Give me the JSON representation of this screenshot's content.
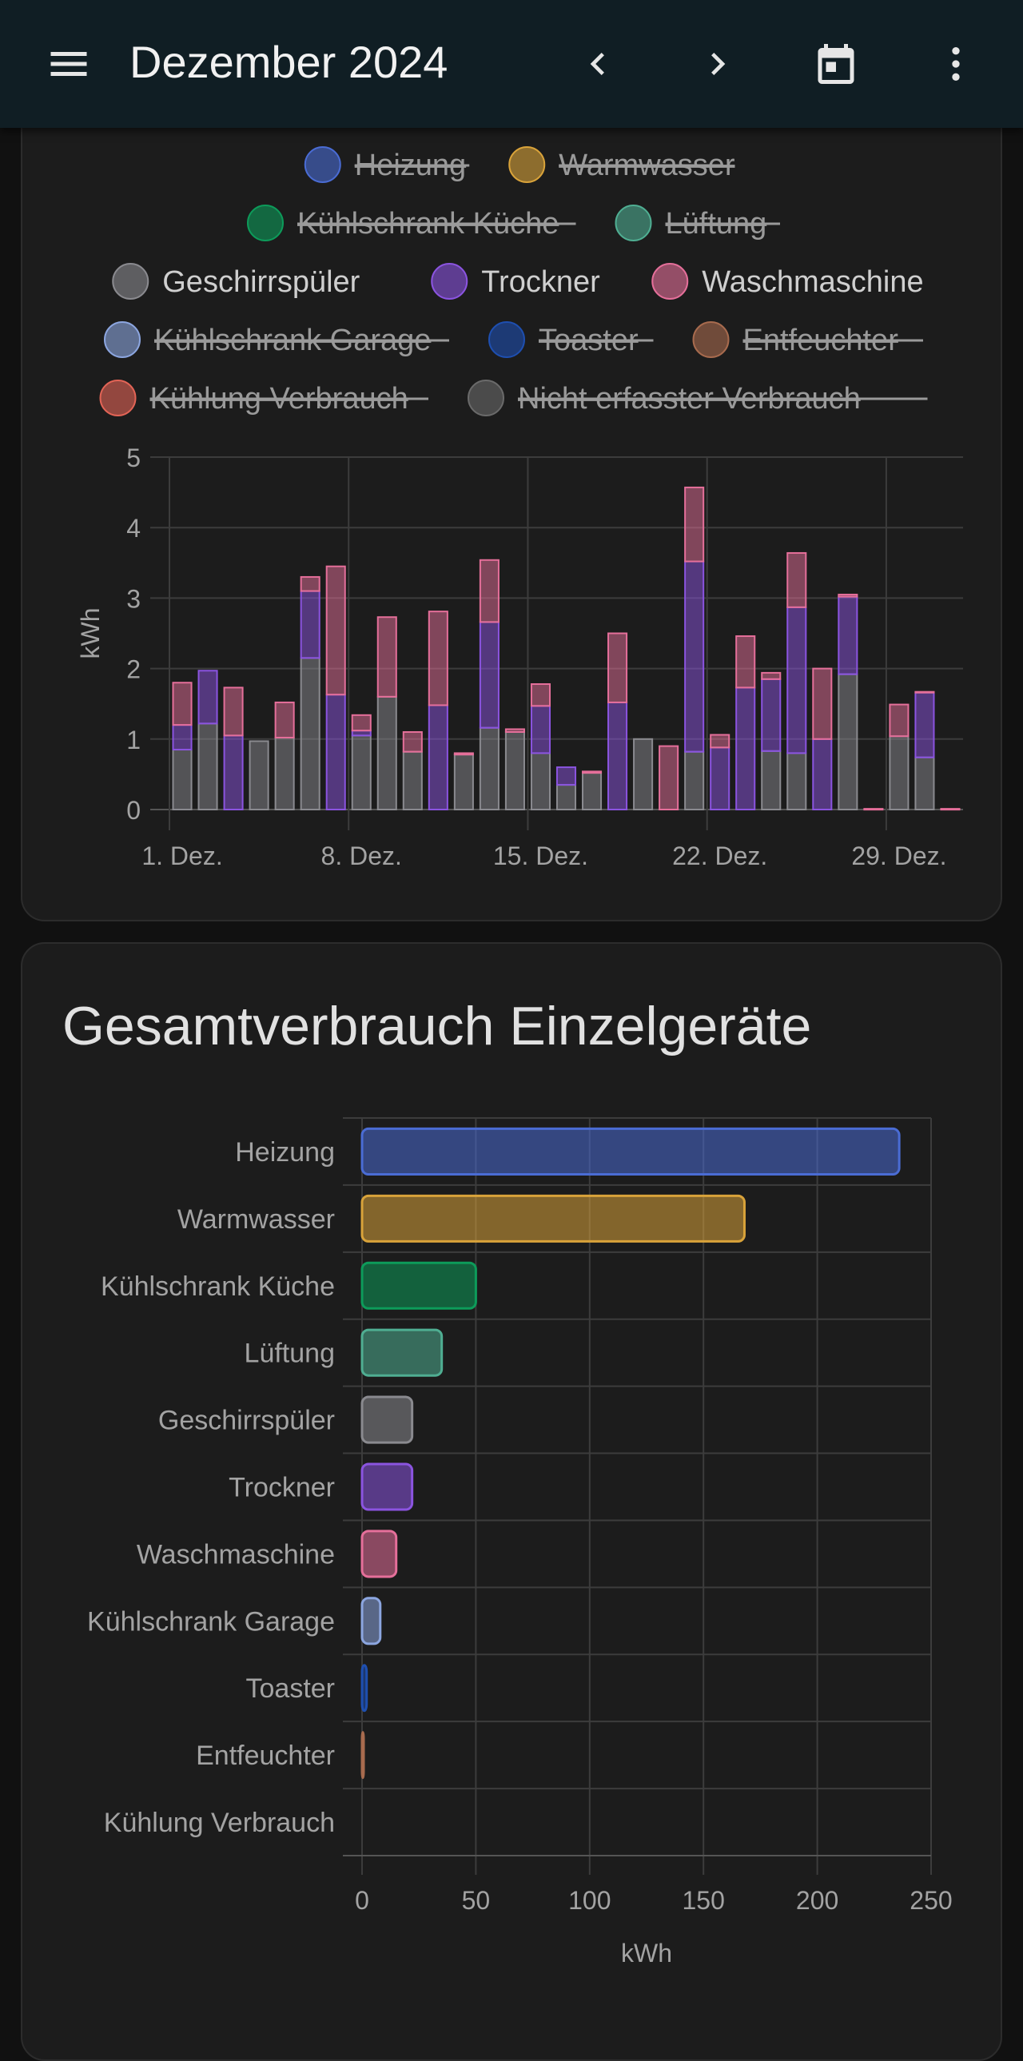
{
  "header": {
    "title": "Dezember 2024",
    "menu_icon": "menu-icon",
    "prev_icon": "chevron-left-icon",
    "next_icon": "chevron-right-icon",
    "calendar_icon": "calendar-icon",
    "more_icon": "more-vertical-icon"
  },
  "daily_chart": {
    "legend": [
      {
        "label": "Heizung",
        "color": "#4a6cd4",
        "hidden": true
      },
      {
        "label": "Warmwasser",
        "color": "#d9a33a",
        "hidden": true
      },
      {
        "label": "Kühlschrank Küche",
        "color": "#0d9b5a",
        "hidden": true
      },
      {
        "label": "Lüftung",
        "color": "#4fae92",
        "hidden": true
      },
      {
        "label": "Geschirrspüler",
        "color": "#8a8a8f",
        "hidden": false
      },
      {
        "label": "Trockner",
        "color": "#8b54e0",
        "hidden": false
      },
      {
        "label": "Waschmaschine",
        "color": "#e56f9a",
        "hidden": false
      },
      {
        "label": "Kühlschrank Garage",
        "color": "#8ca6e0",
        "hidden": true
      },
      {
        "label": "Toaster",
        "color": "#1e4fb0",
        "hidden": true
      },
      {
        "label": "Entfeuchter",
        "color": "#a86b4e",
        "hidden": true
      },
      {
        "label": "Kühlung Verbrauch",
        "color": "#e36456",
        "hidden": true
      },
      {
        "label": "Nicht erfasster Verbrauch",
        "color": "#6a6a6a",
        "hidden": true
      }
    ]
  },
  "totals_chart": {
    "title": "Gesamtverbrauch Einzelgeräte"
  },
  "chart_data": [
    {
      "type": "bar",
      "stacked": true,
      "ylabel": "kWh",
      "ylim": [
        0,
        5
      ],
      "y_ticks": [
        "0",
        "1",
        "2",
        "3",
        "4",
        "5"
      ],
      "x_tick_labels": [
        "1. Dez.",
        "8. Dez.",
        "15. Dez.",
        "22. Dez.",
        "29. Dez."
      ],
      "grid": true,
      "categories": [
        "1",
        "2",
        "3",
        "4",
        "5",
        "6",
        "7",
        "8",
        "9",
        "10",
        "11",
        "12",
        "13",
        "14",
        "15",
        "16",
        "17",
        "18",
        "19",
        "20",
        "21",
        "22",
        "23",
        "24",
        "25",
        "26",
        "27",
        "28",
        "29",
        "30",
        "31"
      ],
      "series": [
        {
          "name": "Geschirrspüler",
          "color": "#8a8a8f",
          "values": [
            0.85,
            1.22,
            0,
            0.97,
            1.02,
            2.15,
            0,
            1.05,
            1.6,
            0.82,
            0,
            0.78,
            1.16,
            1.1,
            0.8,
            0.35,
            0.52,
            0,
            1.0,
            0,
            0.82,
            0,
            0,
            0.83,
            0.8,
            0,
            1.92,
            0,
            1.04,
            0.74,
            0
          ]
        },
        {
          "name": "Trockner",
          "color": "#8b54e0",
          "values": [
            0.35,
            0.75,
            1.05,
            0,
            0,
            0.95,
            1.63,
            0.07,
            0,
            0,
            1.48,
            0,
            1.5,
            0,
            0.67,
            0.25,
            0,
            1.52,
            0,
            0,
            2.7,
            0.88,
            1.73,
            1.02,
            2.07,
            1.0,
            1.1,
            0,
            0,
            0.92,
            0
          ]
        },
        {
          "name": "Waschmaschine",
          "color": "#e56f9a",
          "values": [
            0.6,
            0,
            0.68,
            0,
            0.5,
            0.2,
            1.82,
            0.22,
            1.13,
            0.28,
            1.33,
            0.02,
            0.88,
            0.04,
            0.31,
            0,
            0.02,
            0.98,
            0,
            0.9,
            1.05,
            0.18,
            0.73,
            0.09,
            0.77,
            1.0,
            0.03,
            0.01,
            0.45,
            0.01,
            0.01
          ]
        }
      ]
    },
    {
      "type": "bar",
      "orientation": "horizontal",
      "xlabel": "kWh",
      "xlim": [
        0,
        250
      ],
      "x_ticks": [
        "0",
        "50",
        "100",
        "150",
        "200",
        "250"
      ],
      "grid": true,
      "categories": [
        "Heizung",
        "Warmwasser",
        "Kühlschrank Küche",
        "Lüftung",
        "Geschirrspüler",
        "Trockner",
        "Waschmaschine",
        "Kühlschrank Garage",
        "Toaster",
        "Entfeuchter",
        "Kühlung Verbrauch"
      ],
      "values": [
        236,
        168,
        50,
        35,
        22,
        22,
        15,
        8,
        2,
        0.5,
        0
      ],
      "colors": [
        "#4a6cd4",
        "#d9a33a",
        "#0d9b5a",
        "#4fae92",
        "#8a8a8f",
        "#8b54e0",
        "#e56f9a",
        "#8ca6e0",
        "#1e4fb0",
        "#a86b4e",
        "#e36456"
      ]
    }
  ]
}
